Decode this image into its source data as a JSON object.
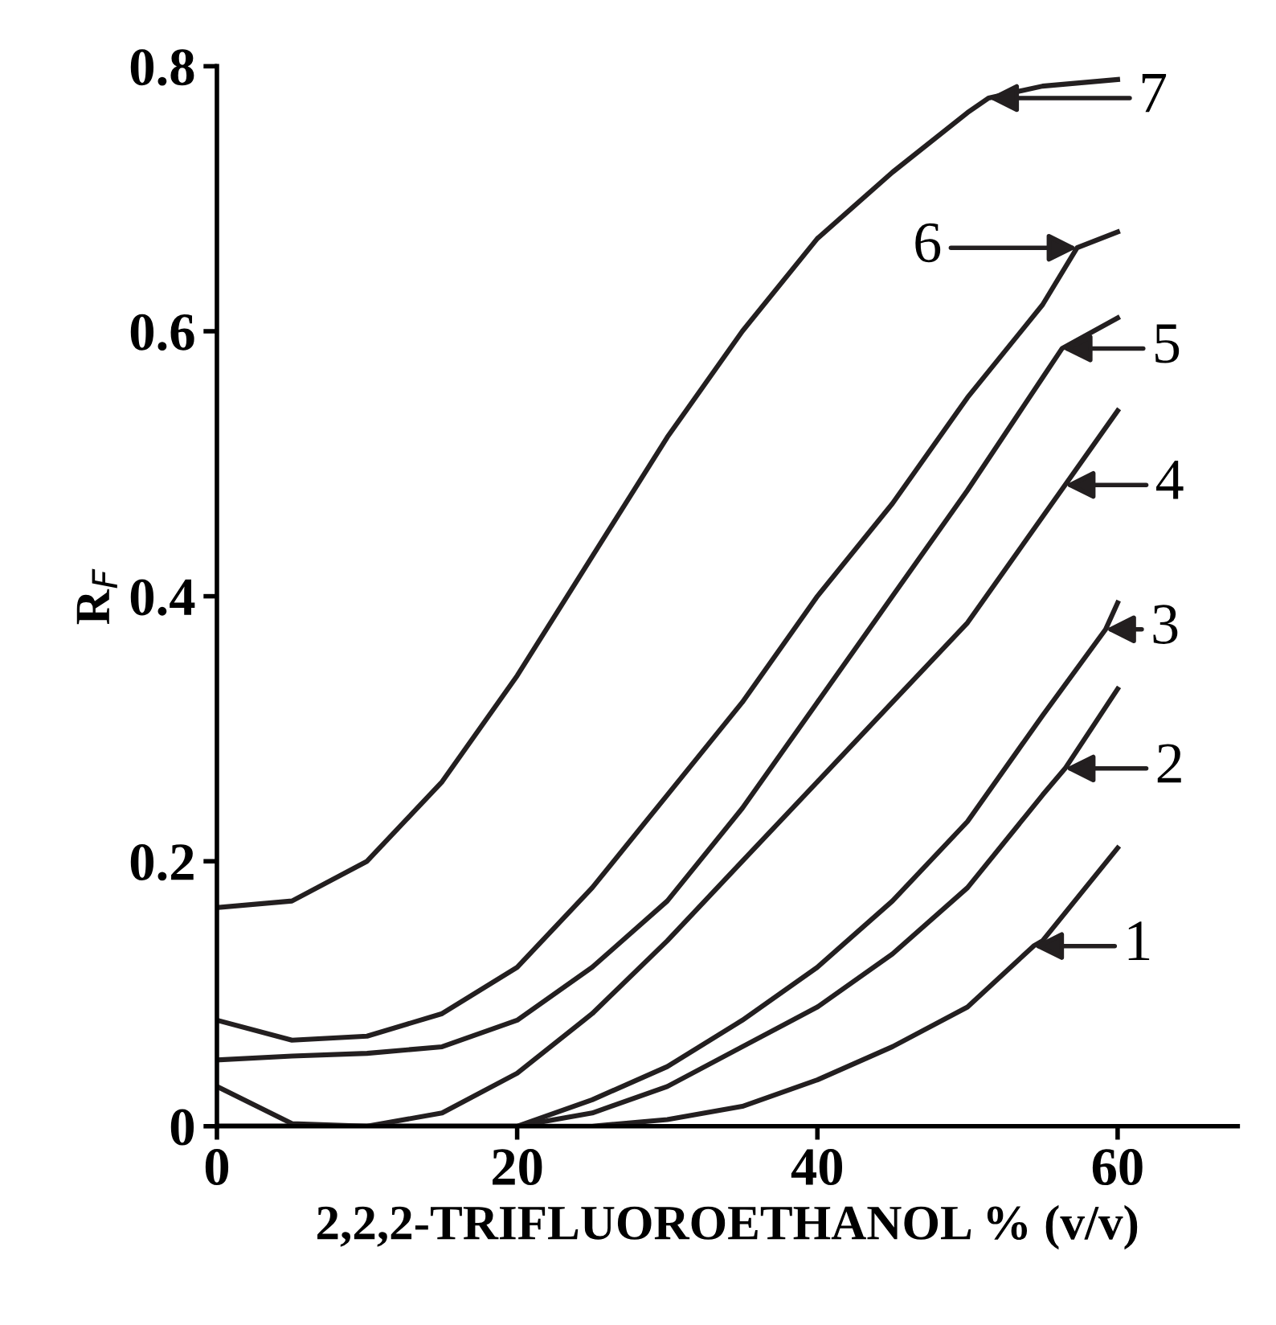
{
  "chart_data": {
    "type": "line",
    "xlabel": "2,2,2-TRIFLUOROETHANOL % (v/v)",
    "ylabel": "R$_{F}$",
    "xlim": [
      0,
      68
    ],
    "ylim": [
      0,
      0.8
    ],
    "xticks": [
      0,
      20,
      40,
      60
    ],
    "yticks": [
      0,
      0.2,
      0.4,
      0.6,
      0.8
    ],
    "grid": false,
    "legend": false,
    "marker": "none",
    "line_style": "solid",
    "series": [
      {
        "color": "#231f20",
        "x": [
          0,
          5,
          10,
          15,
          20,
          25,
          30,
          35,
          40,
          45,
          50,
          54.4,
          55,
          60
        ],
        "values": [
          0,
          0,
          0,
          0,
          0,
          0,
          0.005,
          0.015,
          0.035,
          0.06,
          0.09,
          0.136,
          0.14,
          0.21
        ]
      },
      {
        "color": "#231f20",
        "x": [
          0,
          5,
          10,
          15,
          20,
          25,
          30,
          35,
          40,
          45,
          50,
          55,
          56.5,
          60
        ],
        "values": [
          0,
          0,
          0,
          0,
          0,
          0.01,
          0.03,
          0.06,
          0.09,
          0.13,
          0.18,
          0.25,
          0.27,
          0.33
        ]
      },
      {
        "color": "#231f20",
        "x": [
          0,
          5,
          10,
          15,
          20,
          25,
          30,
          35,
          40,
          45,
          50,
          55,
          59.2,
          60
        ],
        "values": [
          0,
          0,
          0,
          0,
          0,
          0.02,
          0.045,
          0.08,
          0.12,
          0.17,
          0.23,
          0.31,
          0.375,
          0.395
        ]
      },
      {
        "color": "#231f20",
        "x": [
          0,
          5,
          10,
          15,
          20,
          25,
          30,
          35,
          40,
          45,
          50,
          55,
          56.5,
          60
        ],
        "values": [
          0.03,
          0.002,
          0,
          0.01,
          0.04,
          0.085,
          0.14,
          0.2,
          0.26,
          0.32,
          0.38,
          0.46,
          0.484,
          0.54
        ]
      },
      {
        "color": "#231f20",
        "x": [
          0,
          5,
          10,
          15,
          20,
          25,
          30,
          35,
          40,
          45,
          50,
          55,
          56.3,
          60
        ],
        "values": [
          0.05,
          0.053,
          0.055,
          0.06,
          0.08,
          0.12,
          0.17,
          0.24,
          0.32,
          0.4,
          0.48,
          0.565,
          0.587,
          0.61
        ]
      },
      {
        "color": "#231f20",
        "x": [
          0,
          5,
          10,
          15,
          20,
          25,
          30,
          35,
          40,
          45,
          50,
          55,
          57.3,
          60
        ],
        "values": [
          0.08,
          0.065,
          0.068,
          0.085,
          0.12,
          0.18,
          0.25,
          0.32,
          0.4,
          0.47,
          0.55,
          0.62,
          0.663,
          0.675
        ]
      },
      {
        "color": "#231f20",
        "x": [
          0,
          5,
          10,
          15,
          20,
          25,
          30,
          35,
          40,
          45,
          50,
          51.4,
          55,
          60
        ],
        "values": [
          0.165,
          0.17,
          0.2,
          0.26,
          0.34,
          0.43,
          0.52,
          0.6,
          0.67,
          0.72,
          0.765,
          0.776,
          0.785,
          0.79
        ]
      }
    ],
    "annotations": [
      {
        "text": "1",
        "x": 54.4,
        "y": 0.136
      },
      {
        "text": "2",
        "x": 56.5,
        "y": 0.27
      },
      {
        "text": "3",
        "x": 59.2,
        "y": 0.375
      },
      {
        "text": "4",
        "x": 56.5,
        "y": 0.484
      },
      {
        "text": "5",
        "x": 56.3,
        "y": 0.587
      },
      {
        "text": "6",
        "x": 57.3,
        "y": 0.663
      },
      {
        "text": "7",
        "x": 51.4,
        "y": 0.776
      }
    ]
  }
}
